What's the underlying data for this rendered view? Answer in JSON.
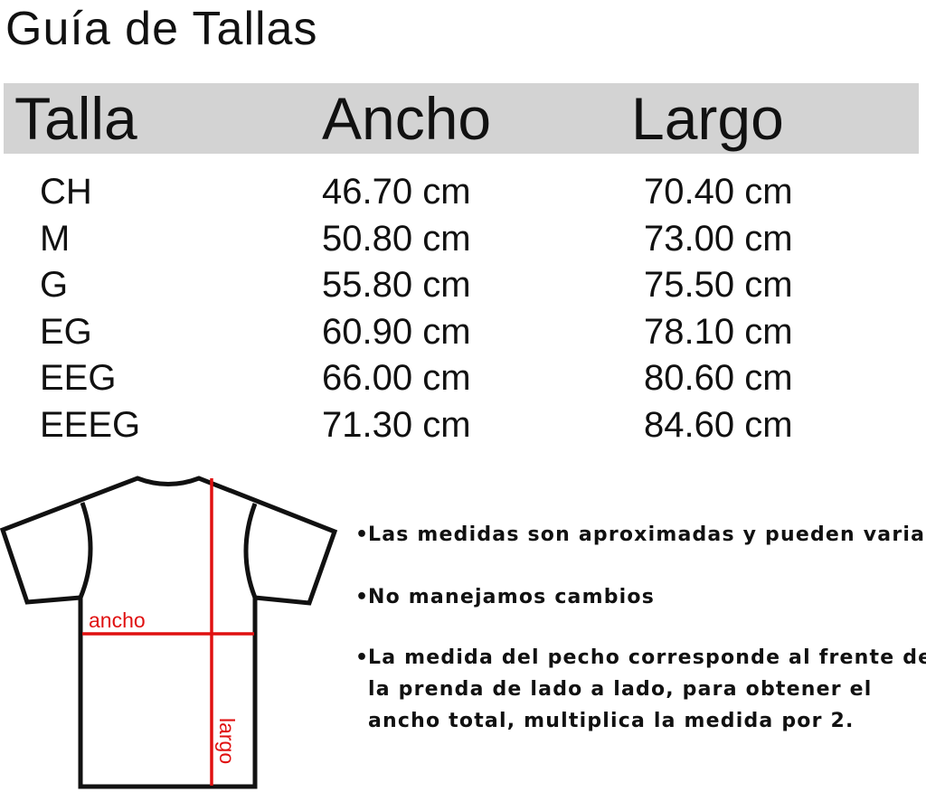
{
  "title": "Guía de Tallas",
  "table": {
    "headers": [
      "Talla",
      "Ancho",
      "Largo"
    ],
    "rows": [
      [
        "CH",
        "46.70 cm",
        "70.40 cm"
      ],
      [
        "M",
        "50.80 cm",
        "73.00 cm"
      ],
      [
        "G",
        "55.80 cm",
        "75.50 cm"
      ],
      [
        "EG",
        "60.90 cm",
        "78.10 cm"
      ],
      [
        "EEG",
        "66.00 cm",
        "80.60 cm"
      ],
      [
        "EEEG",
        "71.30 cm",
        "84.60 cm"
      ]
    ]
  },
  "diagram": {
    "ancho_label": "ancho",
    "largo_label": "largo",
    "accent": "#e01010"
  },
  "notes": [
    "Las medidas son aproximadas y pueden variar",
    "No manejamos cambios",
    "La medida del pecho corresponde al frente de\nla prenda de lado a lado, para obtener el\nancho total, multiplica la medida por 2."
  ],
  "bullet": "•"
}
